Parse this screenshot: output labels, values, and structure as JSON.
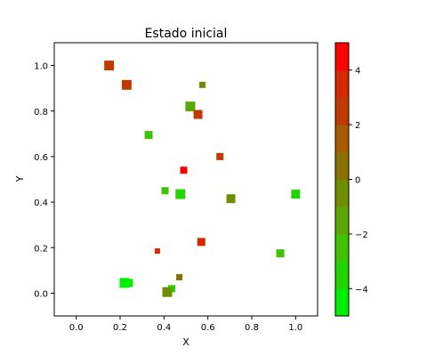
{
  "chart_data": {
    "type": "scatter",
    "title": "Estado inicial",
    "xlabel": "X",
    "ylabel": "Y",
    "xlim": [
      -0.1,
      1.1
    ],
    "ylim": [
      -0.1,
      1.1
    ],
    "xticks": [
      "0.0",
      "0.2",
      "0.4",
      "0.6",
      "0.8",
      "1.0"
    ],
    "yticks": [
      "0.0",
      "0.2",
      "0.4",
      "0.6",
      "0.8",
      "1.0"
    ],
    "grid": false,
    "marker": "square",
    "colorbar": {
      "range": [
        -5,
        5
      ],
      "ticks": [
        "−4",
        "−2",
        "0",
        "2",
        "4"
      ],
      "colors": [
        "#00ee00",
        "#22d400",
        "#3fc200",
        "#5aa800",
        "#6e8e00",
        "#8a7200",
        "#a85a00",
        "#c03a00",
        "#d82800",
        "#ff0000"
      ]
    },
    "points": [
      {
        "x": 0.15,
        "y": 1.0,
        "v": 2.6,
        "s": 11
      },
      {
        "x": 0.23,
        "y": 0.915,
        "v": 2.8,
        "s": 11
      },
      {
        "x": 0.575,
        "y": 0.915,
        "v": -1.0,
        "s": 7
      },
      {
        "x": 0.52,
        "y": 0.82,
        "v": -1.2,
        "s": 11
      },
      {
        "x": 0.555,
        "y": 0.785,
        "v": 2.7,
        "s": 10
      },
      {
        "x": 0.33,
        "y": 0.695,
        "v": -2.6,
        "s": 9
      },
      {
        "x": 0.655,
        "y": 0.6,
        "v": 2.1,
        "s": 8
      },
      {
        "x": 0.49,
        "y": 0.54,
        "v": 4.9,
        "s": 8
      },
      {
        "x": 0.405,
        "y": 0.45,
        "v": -3.0,
        "s": 8
      },
      {
        "x": 0.475,
        "y": 0.435,
        "v": -3.2,
        "s": 11
      },
      {
        "x": 0.705,
        "y": 0.415,
        "v": -0.6,
        "s": 10
      },
      {
        "x": 1.0,
        "y": 0.435,
        "v": -3.3,
        "s": 10
      },
      {
        "x": 0.57,
        "y": 0.225,
        "v": 3.4,
        "s": 9
      },
      {
        "x": 0.37,
        "y": 0.185,
        "v": 3.0,
        "s": 6
      },
      {
        "x": 0.93,
        "y": 0.175,
        "v": -3.0,
        "s": 9
      },
      {
        "x": 0.47,
        "y": 0.07,
        "v": 0.8,
        "s": 7
      },
      {
        "x": 0.22,
        "y": 0.045,
        "v": -4.7,
        "s": 11
      },
      {
        "x": 0.24,
        "y": 0.045,
        "v": -4.6,
        "s": 9
      },
      {
        "x": 0.435,
        "y": 0.02,
        "v": -3.5,
        "s": 8
      },
      {
        "x": 0.415,
        "y": 0.005,
        "v": -1.0,
        "s": 11
      }
    ]
  }
}
